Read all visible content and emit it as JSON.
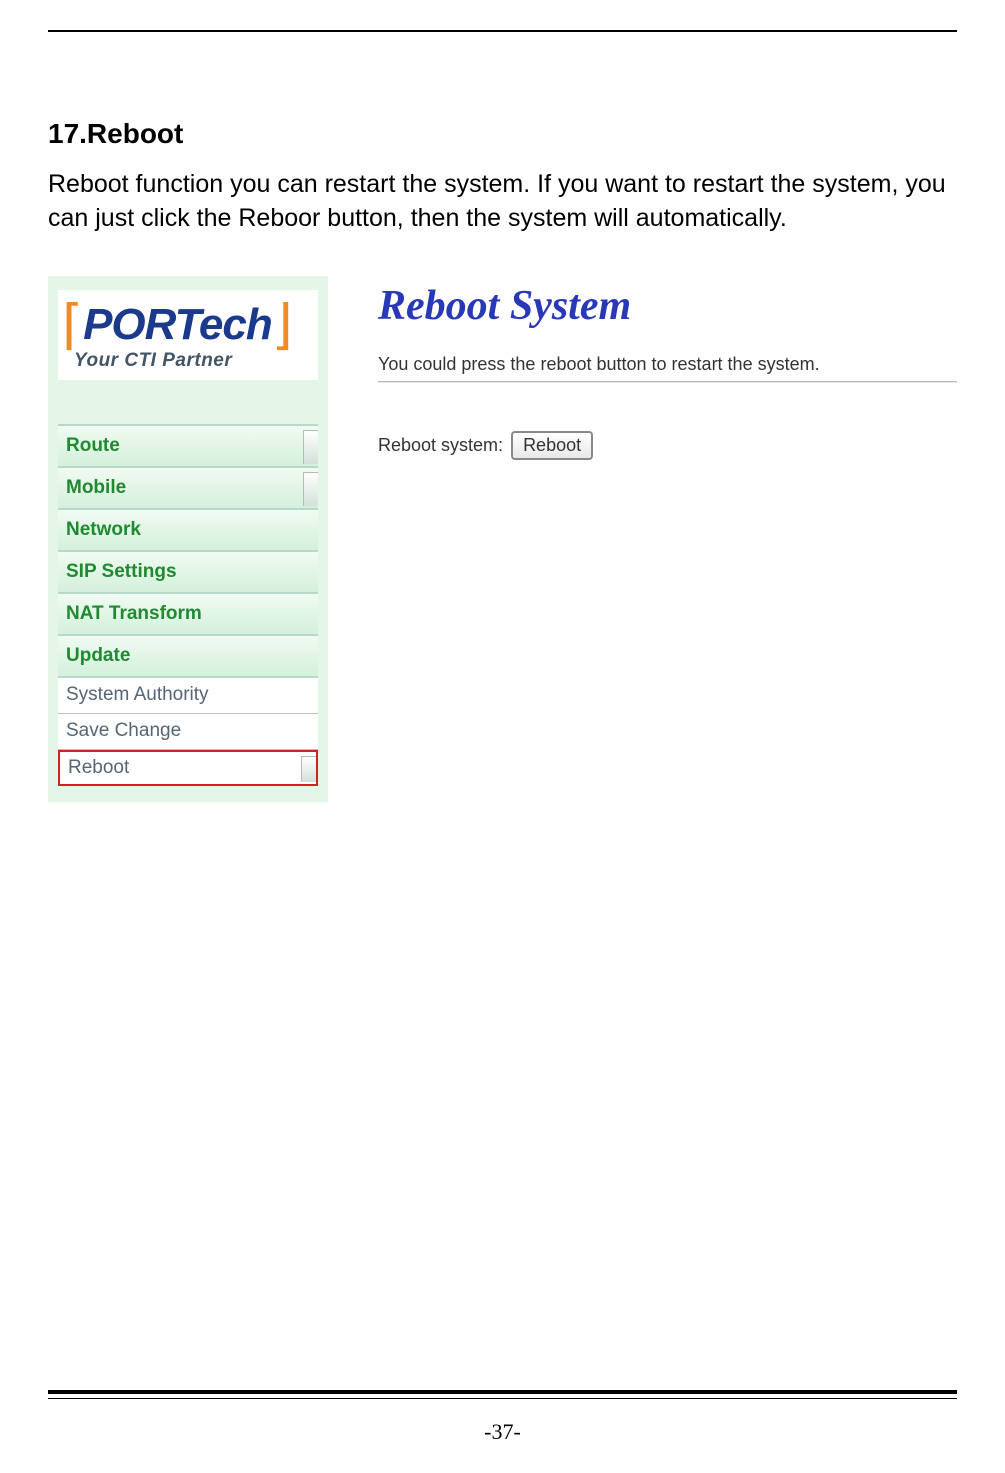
{
  "heading": "17.Reboot",
  "body_text": "Reboot function you can restart the system. If you want to restart the system, you can just click the Reboor button, then the system will automatically.",
  "logo": {
    "main": "PORTech",
    "tagline": "Your CTI Partner",
    "main_color": "#1b3a8c",
    "bracket_color": "#f08c28",
    "tagline_color": "#445566"
  },
  "sidebar": {
    "background_color": "#e4f6e8",
    "items": [
      {
        "label": "Route",
        "style": "green",
        "tab": true,
        "highlight": false
      },
      {
        "label": "Mobile",
        "style": "green",
        "tab": true,
        "highlight": false
      },
      {
        "label": "Network",
        "style": "green",
        "tab": false,
        "highlight": false
      },
      {
        "label": "SIP Settings",
        "style": "green",
        "tab": false,
        "highlight": false
      },
      {
        "label": "NAT Transform",
        "style": "green",
        "tab": false,
        "highlight": false
      },
      {
        "label": "Update",
        "style": "green",
        "tab": false,
        "highlight": false
      },
      {
        "label": "System Authority",
        "style": "plain",
        "tab": false,
        "highlight": false
      },
      {
        "label": "Save Change",
        "style": "plain",
        "tab": false,
        "highlight": false
      },
      {
        "label": "Reboot",
        "style": "plain",
        "tab": true,
        "highlight": true
      }
    ],
    "green_text_color": "#1f8a30",
    "plain_text_color": "#556677",
    "highlight_border_color": "#d02020"
  },
  "main": {
    "title": "Reboot System",
    "title_color": "#2838b8",
    "description": "You could press the reboot button to restart the system.",
    "reboot_label": "Reboot system:",
    "reboot_button": "Reboot"
  },
  "page_number": "-37-",
  "footer_rule_colors": {
    "thick": "#000000",
    "thin": "#000000"
  }
}
